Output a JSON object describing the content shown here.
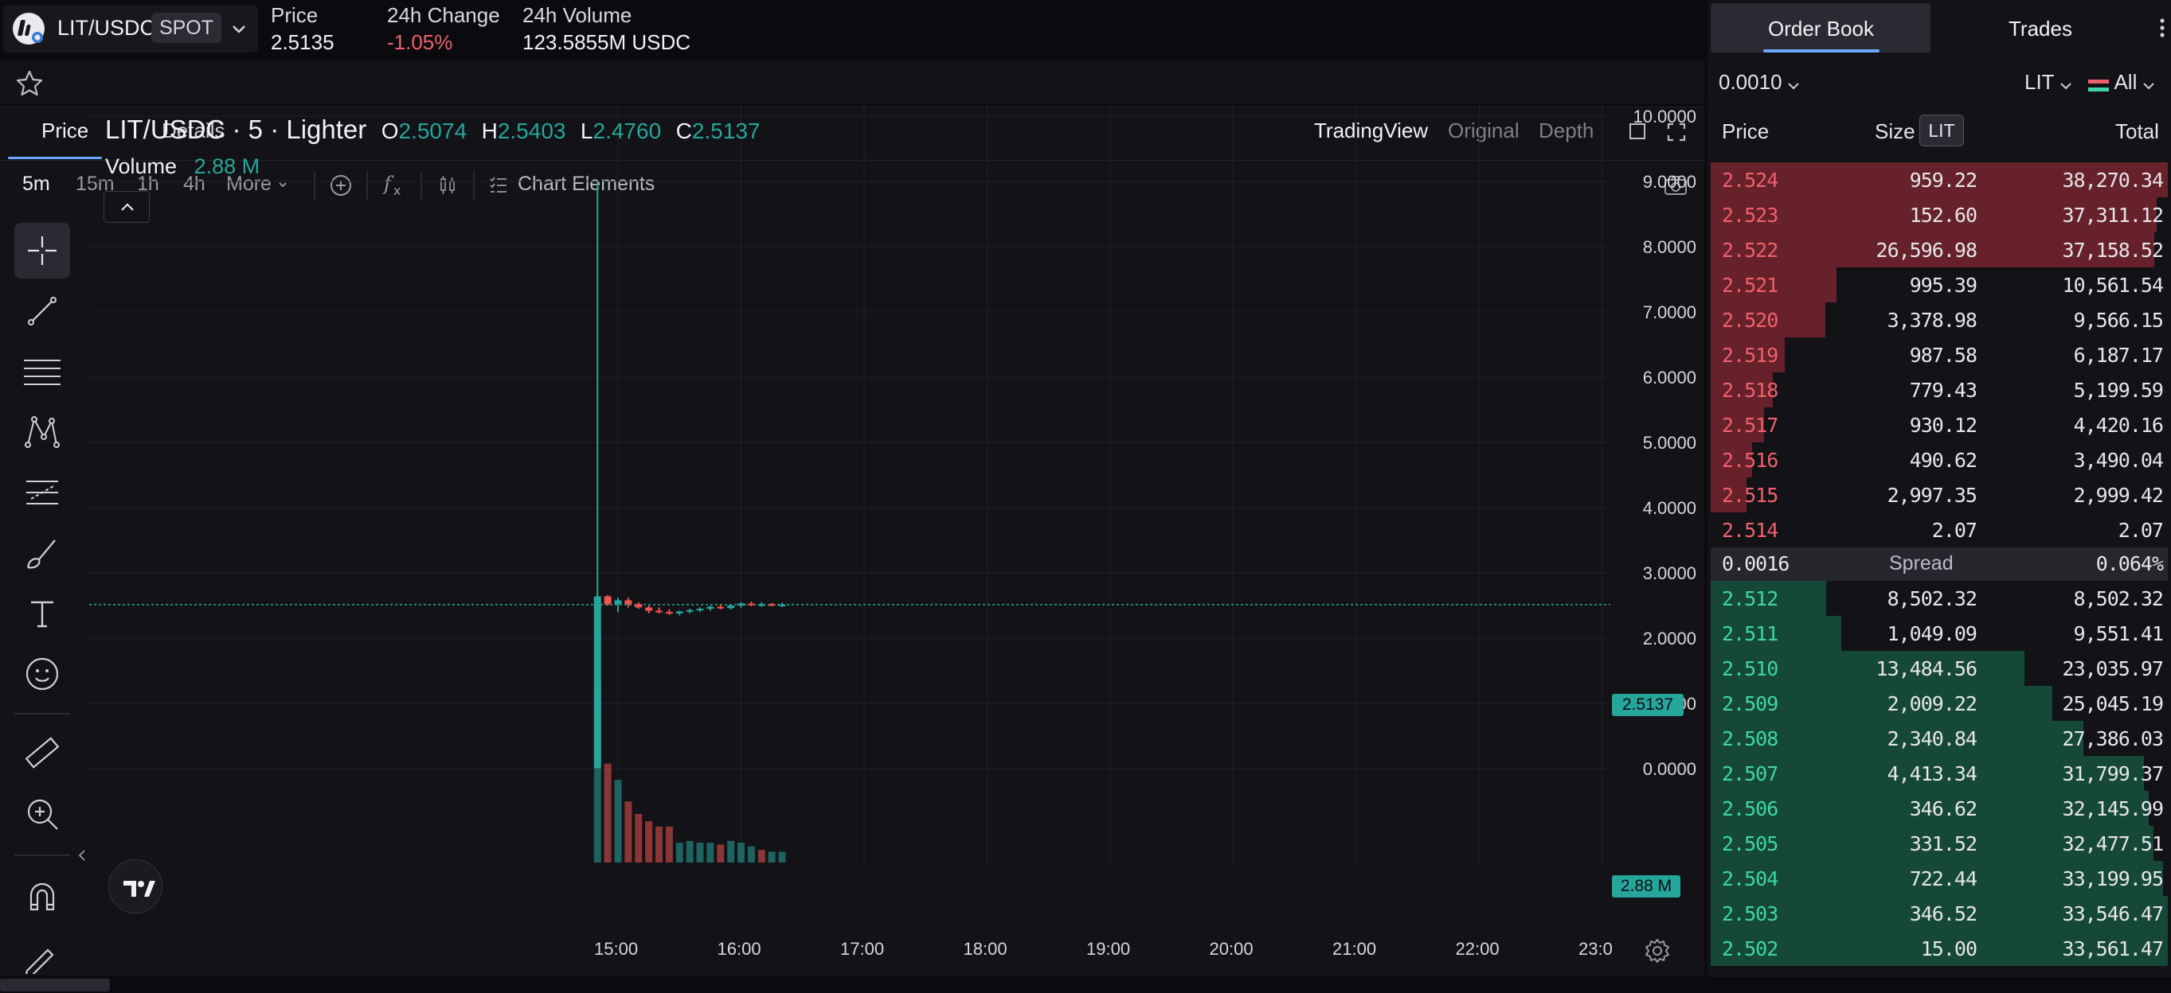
{
  "header": {
    "pair": "LIT/USDC",
    "market_type": "SPOT",
    "price_label": "Price",
    "price_value": "2.5135",
    "change_label": "24h Change",
    "change_value": "-1.05%",
    "volume_label": "24h Volume",
    "volume_value": "123.5855M USDC"
  },
  "chart_panel": {
    "tabs": [
      "Price",
      "Details"
    ],
    "views": [
      "TradingView",
      "Original",
      "Depth"
    ],
    "timeframes": [
      "5m",
      "15m",
      "1h",
      "4h"
    ],
    "more_label": "More",
    "chart_elements_label": "Chart Elements",
    "legend": {
      "title": "LIT/USDC · 5 · Lighter",
      "o_key": "O",
      "o": "2.5074",
      "h_key": "H",
      "h": "2.5403",
      "l_key": "L",
      "l": "2.4760",
      "c_key": "C",
      "c": "2.5137",
      "volume_label": "Volume",
      "volume_value": "2.88 M"
    },
    "last_price_tag": "2.5137",
    "volume_tag": "2.88 M",
    "y_ticks": [
      "10.0000",
      "9.0000",
      "8.0000",
      "7.0000",
      "6.0000",
      "5.0000",
      "4.0000",
      "3.0000",
      "2.0000",
      "1.0000",
      "0.0000"
    ],
    "x_ticks": [
      "15:00",
      "16:00",
      "17:00",
      "18:00",
      "19:00",
      "20:00",
      "21:00",
      "22:00",
      "23:0"
    ]
  },
  "chart_data": {
    "type": "candlestick",
    "symbol": "LIT/USDC",
    "interval": "5",
    "ylim": [
      0,
      10
    ],
    "x_start": "14:45",
    "x_end": "23:00",
    "candles": [
      {
        "t": "14:50",
        "o": 0.01,
        "h": 9.0,
        "l": 0.0,
        "c": 2.64
      },
      {
        "t": "14:55",
        "o": 2.64,
        "h": 2.66,
        "l": 2.5,
        "c": 2.52
      },
      {
        "t": "15:00",
        "o": 2.52,
        "h": 2.62,
        "l": 2.4,
        "c": 2.58
      },
      {
        "t": "15:05",
        "o": 2.58,
        "h": 2.62,
        "l": 2.47,
        "c": 2.52
      },
      {
        "t": "15:10",
        "o": 2.52,
        "h": 2.55,
        "l": 2.45,
        "c": 2.47
      },
      {
        "t": "15:15",
        "o": 2.47,
        "h": 2.5,
        "l": 2.38,
        "c": 2.42
      },
      {
        "t": "15:20",
        "o": 2.42,
        "h": 2.47,
        "l": 2.38,
        "c": 2.4
      },
      {
        "t": "15:25",
        "o": 2.4,
        "h": 2.44,
        "l": 2.36,
        "c": 2.38
      },
      {
        "t": "15:30",
        "o": 2.38,
        "h": 2.42,
        "l": 2.35,
        "c": 2.41
      },
      {
        "t": "15:35",
        "o": 2.41,
        "h": 2.45,
        "l": 2.38,
        "c": 2.43
      },
      {
        "t": "15:40",
        "o": 2.43,
        "h": 2.47,
        "l": 2.4,
        "c": 2.45
      },
      {
        "t": "15:45",
        "o": 2.45,
        "h": 2.5,
        "l": 2.42,
        "c": 2.48
      },
      {
        "t": "15:50",
        "o": 2.48,
        "h": 2.52,
        "l": 2.44,
        "c": 2.46
      },
      {
        "t": "15:55",
        "o": 2.46,
        "h": 2.52,
        "l": 2.44,
        "c": 2.5
      },
      {
        "t": "16:00",
        "o": 2.5,
        "h": 2.55,
        "l": 2.47,
        "c": 2.53
      },
      {
        "t": "16:05",
        "o": 2.53,
        "h": 2.56,
        "l": 2.49,
        "c": 2.51
      },
      {
        "t": "16:10",
        "o": 2.51,
        "h": 2.55,
        "l": 2.48,
        "c": 2.52
      },
      {
        "t": "16:15",
        "o": 2.52,
        "h": 2.54,
        "l": 2.49,
        "c": 2.51
      },
      {
        "t": "16:20",
        "o": 2.51,
        "h": 2.54,
        "l": 2.48,
        "c": 2.5137
      }
    ],
    "volume_rel": [
      1.0,
      0.55,
      0.46,
      0.34,
      0.27,
      0.23,
      0.2,
      0.2,
      0.11,
      0.12,
      0.11,
      0.11,
      0.1,
      0.12,
      0.11,
      0.09,
      0.07,
      0.06,
      0.06
    ],
    "volume_up": [
      true,
      false,
      true,
      false,
      false,
      false,
      false,
      false,
      true,
      true,
      true,
      true,
      false,
      true,
      true,
      true,
      false,
      true,
      true
    ]
  },
  "order_book": {
    "tabs": [
      "Order Book",
      "Trades"
    ],
    "tick_size": "0.0010",
    "asset": "LIT",
    "filter": "All",
    "col_price": "Price",
    "col_size": "Size",
    "col_size_unit": "LIT",
    "col_total": "Total",
    "asks": [
      {
        "price": "2.524",
        "size": "959.22",
        "total": "38,270.34",
        "depth": 1.0
      },
      {
        "price": "2.523",
        "size": "152.60",
        "total": "37,311.12",
        "depth": 0.975
      },
      {
        "price": "2.522",
        "size": "26,596.98",
        "total": "37,158.52",
        "depth": 0.971
      },
      {
        "price": "2.521",
        "size": "995.39",
        "total": "10,561.54",
        "depth": 0.276
      },
      {
        "price": "2.520",
        "size": "3,378.98",
        "total": "9,566.15",
        "depth": 0.25
      },
      {
        "price": "2.519",
        "size": "987.58",
        "total": "6,187.17",
        "depth": 0.162
      },
      {
        "price": "2.518",
        "size": "779.43",
        "total": "5,199.59",
        "depth": 0.136
      },
      {
        "price": "2.517",
        "size": "930.12",
        "total": "4,420.16",
        "depth": 0.116
      },
      {
        "price": "2.516",
        "size": "490.62",
        "total": "3,490.04",
        "depth": 0.091
      },
      {
        "price": "2.515",
        "size": "2,997.35",
        "total": "2,999.42",
        "depth": 0.078
      },
      {
        "price": "2.514",
        "size": "2.07",
        "total": "2.07",
        "depth": 0.0
      }
    ],
    "spread_value": "0.0016",
    "spread_label": "Spread",
    "spread_pct": "0.064%",
    "bids": [
      {
        "price": "2.512",
        "size": "8,502.32",
        "total": "8,502.32",
        "depth": 0.253
      },
      {
        "price": "2.511",
        "size": "1,049.09",
        "total": "9,551.41",
        "depth": 0.285
      },
      {
        "price": "2.510",
        "size": "13,484.56",
        "total": "23,035.97",
        "depth": 0.687
      },
      {
        "price": "2.509",
        "size": "2,009.22",
        "total": "25,045.19",
        "depth": 0.747
      },
      {
        "price": "2.508",
        "size": "2,340.84",
        "total": "27,386.03",
        "depth": 0.816
      },
      {
        "price": "2.507",
        "size": "4,413.34",
        "total": "31,799.37",
        "depth": 0.948
      },
      {
        "price": "2.506",
        "size": "346.62",
        "total": "32,145.99",
        "depth": 0.958
      },
      {
        "price": "2.505",
        "size": "331.52",
        "total": "32,477.51",
        "depth": 0.968
      },
      {
        "price": "2.504",
        "size": "722.44",
        "total": "33,199.95",
        "depth": 0.99
      },
      {
        "price": "2.503",
        "size": "346.52",
        "total": "33,546.47",
        "depth": 1.0
      },
      {
        "price": "2.502",
        "size": "15.00",
        "total": "33,561.47",
        "depth": 1.0
      }
    ]
  },
  "colors": {
    "up": "#26a69a",
    "down": "#ef5350",
    "ask_text": "#f0606b",
    "bid_text": "#3fd6a5",
    "accent": "#6da7ff"
  }
}
